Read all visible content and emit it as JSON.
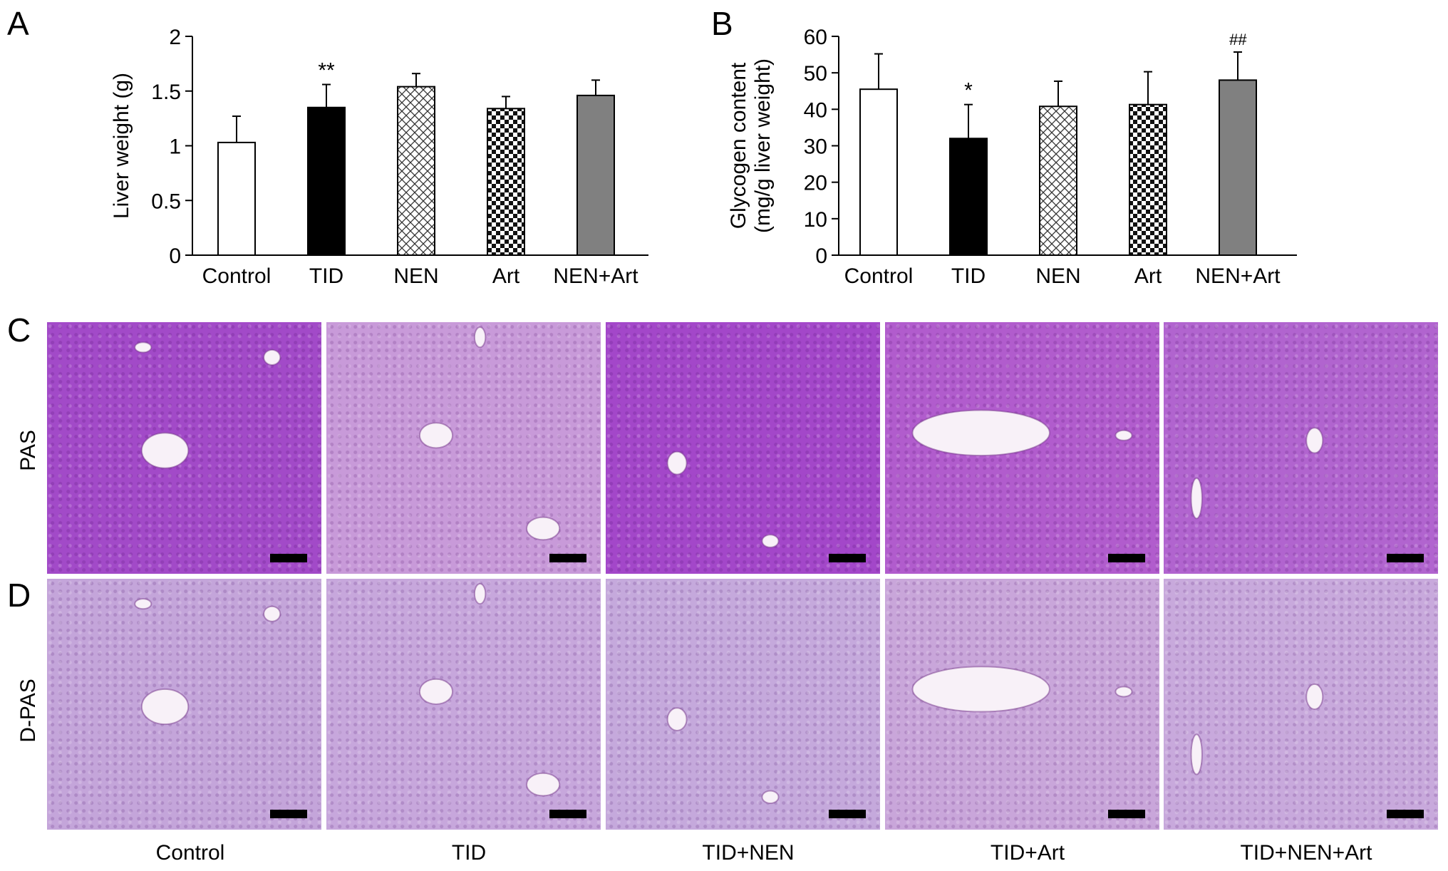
{
  "panels": {
    "a": "A",
    "b": "B",
    "c": "C",
    "d": "D"
  },
  "chart_data": [
    {
      "type": "bar",
      "categories": [
        "Control",
        "TID",
        "NEN",
        "Art",
        "NEN+Art"
      ],
      "values": [
        1.03,
        1.35,
        1.54,
        1.34,
        1.46
      ],
      "errors": [
        0.24,
        0.21,
        0.12,
        0.11,
        0.14
      ],
      "significance": [
        "",
        "**",
        "",
        "",
        ""
      ],
      "fills": [
        "white",
        "black",
        "crosshatch",
        "checker",
        "gray"
      ],
      "title": "",
      "xlabel": "",
      "ylabel": "Liver weight (g)",
      "ylim": [
        0,
        2
      ],
      "yticks": [
        0,
        0.5,
        1,
        1.5,
        2
      ],
      "ytick_labels": [
        "0",
        "0.5",
        "1",
        "1.5",
        "2"
      ],
      "grid": false
    },
    {
      "type": "bar",
      "categories": [
        "Control",
        "TID",
        "NEN",
        "Art",
        "NEN+Art"
      ],
      "values": [
        45.5,
        32,
        40.8,
        41.3,
        48
      ],
      "errors": [
        9.7,
        9.3,
        6.9,
        9,
        7.7
      ],
      "significance": [
        "",
        "*",
        "",
        "",
        "##"
      ],
      "fills": [
        "white",
        "black",
        "crosshatch",
        "checker",
        "gray"
      ],
      "title": "",
      "xlabel": "",
      "ylabel": [
        "Glycogen content",
        "(mg/g liver weight)"
      ],
      "ylim": [
        0,
        60
      ],
      "yticks": [
        0,
        10,
        20,
        30,
        40,
        50,
        60
      ],
      "ytick_labels": [
        "0",
        "10",
        "20",
        "30",
        "40",
        "50",
        "60"
      ],
      "grid": false
    }
  ],
  "micrographs": {
    "rows": [
      "PAS",
      "D-PAS"
    ],
    "columns": [
      "Control",
      "TID",
      "TID+NEN",
      "TID+Art",
      "TID+NEN+Art"
    ],
    "colors": {
      "PAS": [
        "#a24ac8",
        "#c89ad9",
        "#a347c9",
        "#b15ccd",
        "#b164cf"
      ],
      "D-PAS": [
        "#c4a5da",
        "#c7a7dc",
        "#c5a9dc",
        "#c9a6da",
        "#c8a9dc"
      ]
    }
  }
}
